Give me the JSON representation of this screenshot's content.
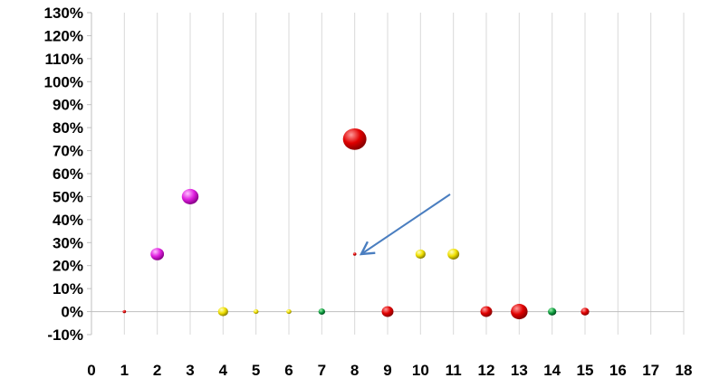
{
  "chart_data": {
    "type": "bubble",
    "title": "",
    "xlabel": "",
    "ylabel": "",
    "xlim": [
      0,
      18
    ],
    "ylim": [
      -0.1,
      1.3
    ],
    "x_ticks": [
      "0",
      "1",
      "2",
      "3",
      "4",
      "5",
      "6",
      "7",
      "8",
      "9",
      "10",
      "11",
      "12",
      "13",
      "14",
      "15",
      "16",
      "17",
      "18"
    ],
    "y_ticks": [
      "-10%",
      "0%",
      "10%",
      "20%",
      "30%",
      "40%",
      "50%",
      "60%",
      "70%",
      "80%",
      "90%",
      "100%",
      "110%",
      "120%",
      "130%"
    ],
    "y_tick_values": [
      -0.1,
      0,
      0.1,
      0.2,
      0.3,
      0.4,
      0.5,
      0.6,
      0.7,
      0.8,
      0.9,
      1.0,
      1.1,
      1.2,
      1.3
    ],
    "grid": "vertical",
    "legend": "none",
    "colors": {
      "red": "#e00000",
      "magenta": "#e020e0",
      "yellow": "#f0e000",
      "green": "#10a040",
      "arrow": "#4a7ec0",
      "grid": "#d9d9d9",
      "axis": "#bfbfbf"
    },
    "points": [
      {
        "x": 1,
        "y": 0,
        "size": 1,
        "color": "red"
      },
      {
        "x": 2,
        "y": 0.25,
        "size": 4,
        "color": "magenta"
      },
      {
        "x": 3,
        "y": 0.5,
        "size": 5,
        "color": "magenta"
      },
      {
        "x": 4,
        "y": 0,
        "size": 3,
        "color": "yellow"
      },
      {
        "x": 5,
        "y": 0,
        "size": 1.5,
        "color": "yellow"
      },
      {
        "x": 6,
        "y": 0,
        "size": 1.5,
        "color": "yellow"
      },
      {
        "x": 7,
        "y": 0,
        "size": 2,
        "color": "green"
      },
      {
        "x": 8,
        "y": 0.75,
        "size": 7,
        "color": "red"
      },
      {
        "x": 8,
        "y": 0.25,
        "size": 1,
        "color": "red"
      },
      {
        "x": 9,
        "y": 0,
        "size": 3.5,
        "color": "red"
      },
      {
        "x": 10,
        "y": 0.25,
        "size": 3,
        "color": "yellow"
      },
      {
        "x": 11,
        "y": 0.25,
        "size": 3.5,
        "color": "yellow"
      },
      {
        "x": 12,
        "y": 0,
        "size": 3.5,
        "color": "red"
      },
      {
        "x": 13,
        "y": 0,
        "size": 5,
        "color": "red"
      },
      {
        "x": 14,
        "y": 0,
        "size": 2.5,
        "color": "green"
      },
      {
        "x": 15,
        "y": 0,
        "size": 2.5,
        "color": "red"
      }
    ],
    "annotation": {
      "type": "arrow",
      "from": [
        10.9,
        0.51
      ],
      "to": [
        8.2,
        0.25
      ],
      "color": "arrow"
    }
  }
}
